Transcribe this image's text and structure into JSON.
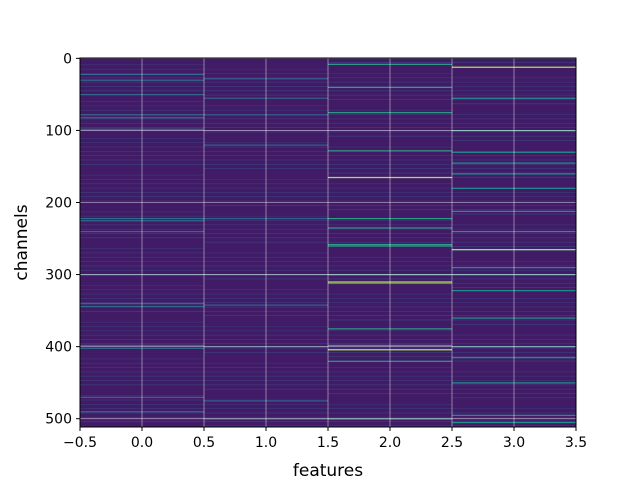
{
  "chart_data": {
    "type": "heatmap",
    "title": "",
    "xlabel": "features",
    "ylabel": "channels",
    "xlim": [
      -0.5,
      3.5
    ],
    "ylim": [
      511.5,
      -0.5
    ],
    "y_inverted": true,
    "n_columns": 4,
    "n_rows": 512,
    "colormap": "viridis",
    "grid": true,
    "x_ticks": [
      -0.5,
      0.0,
      0.5,
      1.0,
      1.5,
      2.0,
      2.5,
      3.0,
      3.5
    ],
    "x_tick_labels": [
      "−0.5",
      "0.0",
      "0.5",
      "1.0",
      "1.5",
      "2.0",
      "2.5",
      "3.0",
      "3.5"
    ],
    "y_ticks": [
      0,
      100,
      200,
      300,
      400,
      500
    ],
    "y_tick_labels": [
      "0",
      "100",
      "200",
      "300",
      "400",
      "500"
    ],
    "background_value": 0.08,
    "highlights": [
      {
        "column": 0,
        "rows": [
          22,
          30,
          50,
          78,
          82,
          98,
          222,
          225,
          240,
          300,
          340,
          344,
          398,
          402,
          470,
          490
        ],
        "value": 0.35
      },
      {
        "column": 1,
        "rows": [
          28,
          55,
          78,
          120,
          222,
          300,
          342,
          400,
          475,
          500
        ],
        "value": 0.3
      },
      {
        "column": 2,
        "rows": [
          8,
          40,
          75,
          128,
          165,
          222,
          235,
          258,
          260,
          300,
          310,
          312,
          375,
          398,
          404,
          420,
          500
        ],
        "value": 0.55
      },
      {
        "column": 3,
        "rows": [
          12,
          55,
          100,
          130,
          145,
          160,
          180,
          212,
          240,
          265,
          290,
          300,
          322,
          360,
          400,
          415,
          450,
          495,
          505
        ],
        "value": 0.5
      }
    ],
    "bright_highlights": [
      {
        "column": 2,
        "rows": [
          165,
          310,
          404
        ],
        "value": 0.9
      },
      {
        "column": 3,
        "rows": [
          12,
          265
        ],
        "value": 0.88
      }
    ]
  }
}
